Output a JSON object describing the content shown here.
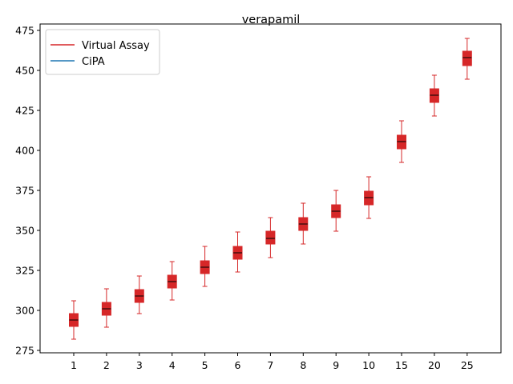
{
  "chart_data": {
    "type": "box",
    "title": "verapamil",
    "xlabel": "",
    "ylabel": "",
    "ylim": [
      273.5,
      479
    ],
    "yticks": [
      275,
      300,
      325,
      350,
      375,
      400,
      425,
      450,
      475
    ],
    "categories": [
      "1",
      "2",
      "3",
      "4",
      "5",
      "6",
      "7",
      "8",
      "9",
      "10",
      "15",
      "20",
      "25"
    ],
    "legend_position": "top-left",
    "legend": [
      {
        "label": "Virtual Assay",
        "color": "#d62728"
      },
      {
        "label": "CiPA",
        "color": "#1f77b4"
      }
    ],
    "series": [
      {
        "name": "Virtual Assay",
        "color": "#d62728",
        "boxes": [
          {
            "whislo": 282.0,
            "q1": 290.0,
            "med": 294.0,
            "q3": 298.0,
            "whishi": 306.0
          },
          {
            "whislo": 289.5,
            "q1": 297.0,
            "med": 301.0,
            "q3": 305.0,
            "whishi": 313.5
          },
          {
            "whislo": 298.0,
            "q1": 305.0,
            "med": 309.0,
            "q3": 313.0,
            "whishi": 321.5
          },
          {
            "whislo": 306.5,
            "q1": 314.0,
            "med": 318.0,
            "q3": 322.0,
            "whishi": 330.5
          },
          {
            "whislo": 315.0,
            "q1": 323.0,
            "med": 327.0,
            "q3": 331.0,
            "whishi": 340.0
          },
          {
            "whislo": 324.0,
            "q1": 332.0,
            "med": 336.0,
            "q3": 340.0,
            "whishi": 349.0
          },
          {
            "whislo": 333.0,
            "q1": 341.5,
            "med": 345.0,
            "q3": 349.5,
            "whishi": 358.0
          },
          {
            "whislo": 341.5,
            "q1": 350.0,
            "med": 354.0,
            "q3": 358.0,
            "whishi": 367.0
          },
          {
            "whislo": 349.5,
            "q1": 358.0,
            "med": 362.0,
            "q3": 366.0,
            "whishi": 375.0
          },
          {
            "whislo": 357.5,
            "q1": 366.0,
            "med": 370.5,
            "q3": 374.5,
            "whishi": 383.5
          },
          {
            "whislo": 392.5,
            "q1": 401.0,
            "med": 405.5,
            "q3": 409.5,
            "whishi": 418.5
          },
          {
            "whislo": 421.5,
            "q1": 430.0,
            "med": 434.5,
            "q3": 438.5,
            "whishi": 447.0
          },
          {
            "whislo": 444.5,
            "q1": 453.0,
            "med": 458.0,
            "q3": 462.0,
            "whishi": 470.0
          }
        ]
      }
    ]
  }
}
